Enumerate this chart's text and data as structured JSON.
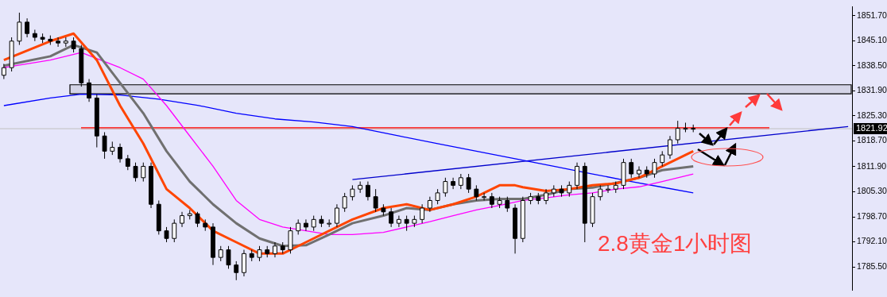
{
  "chart_data": {
    "type": "candlestick",
    "categories": [
      null,
      null,
      null,
      null,
      null,
      null,
      null,
      null,
      null,
      null,
      null,
      null,
      null,
      null,
      null,
      null,
      null,
      null,
      null,
      null,
      null,
      null,
      null,
      null,
      null,
      null,
      null,
      null,
      null,
      null,
      null,
      null,
      null,
      null,
      null,
      null,
      null,
      null,
      null,
      null,
      null,
      null,
      null,
      null,
      null,
      null,
      null,
      null,
      null,
      null,
      null,
      null,
      null,
      null,
      null,
      null,
      null,
      null,
      null,
      null,
      null,
      null,
      null,
      null,
      null,
      null,
      null,
      null,
      null,
      null,
      null,
      null,
      null,
      null,
      null,
      null,
      null,
      null,
      null,
      null,
      null,
      null,
      null,
      null,
      null,
      null,
      null,
      null,
      null,
      null,
      null,
      null,
      null,
      null,
      null,
      null,
      null,
      null,
      null,
      null,
      null,
      null,
      null,
      null,
      null,
      null,
      null,
      null,
      null,
      null
    ],
    "ohlc": [
      [
        1836,
        1839,
        1835,
        1838
      ],
      [
        1838,
        1846,
        1837,
        1845
      ],
      [
        1845,
        1852.5,
        1844,
        1850
      ],
      [
        1850,
        1851,
        1846,
        1847
      ],
      [
        1847,
        1848,
        1845,
        1846
      ],
      [
        1846,
        1847,
        1844.5,
        1845.5
      ],
      [
        1845.5,
        1846.5,
        1844,
        1845
      ],
      [
        1845,
        1846,
        1843.5,
        1844.5
      ],
      [
        1844.5,
        1846,
        1843.5,
        1845
      ],
      [
        1845,
        1846,
        1842,
        1843
      ],
      [
        1843,
        1844,
        1833,
        1834
      ],
      [
        1834,
        1835,
        1829,
        1830
      ],
      [
        1830,
        1831,
        1817,
        1820
      ],
      [
        1820,
        1821,
        1814,
        1816
      ],
      [
        1816,
        1818.5,
        1815,
        1817
      ],
      [
        1817,
        1818,
        1813,
        1814
      ],
      [
        1814,
        1815,
        1811,
        1812
      ],
      [
        1812,
        1813,
        1808,
        1809
      ],
      [
        1809,
        1813,
        1808,
        1812
      ],
      [
        1812,
        1813,
        1801,
        1802
      ],
      [
        1802,
        1803,
        1794,
        1795
      ],
      [
        1795,
        1796,
        1792,
        1793
      ],
      [
        1793,
        1798,
        1792,
        1797
      ],
      [
        1797,
        1800,
        1796,
        1799
      ],
      [
        1799,
        1800.5,
        1798,
        1799.5
      ],
      [
        1799.5,
        1800,
        1796,
        1797
      ],
      [
        1797,
        1798,
        1795,
        1796
      ],
      [
        1796,
        1797,
        1786,
        1788
      ],
      [
        1788,
        1791,
        1787,
        1790
      ],
      [
        1790,
        1791,
        1785,
        1786
      ],
      [
        1786,
        1787,
        1782,
        1784
      ],
      [
        1784,
        1790,
        1783,
        1789
      ],
      [
        1789,
        1790,
        1787,
        1788
      ],
      [
        1788,
        1791,
        1787,
        1790
      ],
      [
        1790,
        1791,
        1788,
        1789
      ],
      [
        1789,
        1792,
        1788,
        1791
      ],
      [
        1791,
        1792,
        1789,
        1790
      ],
      [
        1790,
        1796,
        1789,
        1795
      ],
      [
        1795,
        1798,
        1794,
        1797
      ],
      [
        1797,
        1798,
        1795,
        1796
      ],
      [
        1796,
        1799,
        1795,
        1798
      ],
      [
        1798,
        1799,
        1796,
        1797
      ],
      [
        1797,
        1798,
        1796,
        1797
      ],
      [
        1797,
        1802,
        1796,
        1801
      ],
      [
        1801,
        1805,
        1800,
        1804
      ],
      [
        1804,
        1807,
        1803,
        1806
      ],
      [
        1806,
        1808,
        1805,
        1807
      ],
      [
        1807,
        1808,
        1803,
        1804
      ],
      [
        1804,
        1806,
        1800,
        1801
      ],
      [
        1801,
        1802,
        1799,
        1800
      ],
      [
        1800,
        1801,
        1796,
        1797
      ],
      [
        1797,
        1799,
        1796,
        1798
      ],
      [
        1798,
        1799,
        1795,
        1797
      ],
      [
        1797,
        1799,
        1796,
        1798
      ],
      [
        1798,
        1802,
        1797,
        1801
      ],
      [
        1801,
        1804,
        1800,
        1803
      ],
      [
        1803,
        1806,
        1802,
        1805
      ],
      [
        1805,
        1809,
        1804,
        1808
      ],
      [
        1808,
        1809,
        1806,
        1807
      ],
      [
        1807,
        1810,
        1806,
        1809
      ],
      [
        1809,
        1810,
        1805,
        1806
      ],
      [
        1806,
        1807,
        1803,
        1804
      ],
      [
        1804,
        1805,
        1803,
        1804
      ],
      [
        1804,
        1805,
        1801,
        1802
      ],
      [
        1802,
        1804,
        1801,
        1803
      ],
      [
        1803,
        1804,
        1800,
        1801
      ],
      [
        1801,
        1802,
        1789,
        1793
      ],
      [
        1793,
        1804,
        1792,
        1803
      ],
      [
        1803,
        1805,
        1802,
        1804
      ],
      [
        1804,
        1805,
        1802,
        1803
      ],
      [
        1803,
        1806,
        1802,
        1805
      ],
      [
        1805,
        1807,
        1804,
        1806
      ],
      [
        1806,
        1807,
        1804,
        1805
      ],
      [
        1805,
        1808,
        1804,
        1807
      ],
      [
        1807,
        1813,
        1806,
        1812
      ],
      [
        1812,
        1813,
        1792,
        1797
      ],
      [
        1797,
        1805,
        1796,
        1804
      ],
      [
        1804,
        1807,
        1803,
        1806
      ],
      [
        1806,
        1807,
        1805,
        1806
      ],
      [
        1806,
        1808,
        1805,
        1807
      ],
      [
        1807,
        1814,
        1806,
        1813
      ],
      [
        1813,
        1814,
        1809,
        1810
      ],
      [
        1810,
        1812,
        1809,
        1811
      ],
      [
        1811,
        1812,
        1809,
        1810
      ],
      [
        1810,
        1814,
        1809,
        1813
      ],
      [
        1813,
        1816,
        1812,
        1815
      ],
      [
        1815,
        1820,
        1814,
        1819
      ],
      [
        1819,
        1824,
        1818,
        1822
      ],
      [
        1822,
        1823.5,
        1821,
        1822
      ],
      [
        1822,
        1823,
        1821,
        1821.9
      ],
      null,
      null,
      null,
      null,
      null,
      null,
      null,
      null,
      null,
      null,
      null,
      null,
      null,
      null,
      null,
      null,
      null,
      null,
      null,
      null
    ],
    "series": [
      {
        "type": "line",
        "color": "#ff4500",
        "values": [
          1840,
          null,
          null,
          null,
          null,
          null,
          1845,
          null,
          null,
          1847,
          null,
          null,
          1840,
          null,
          null,
          1828,
          null,
          null,
          1818,
          null,
          null,
          1806,
          null,
          null,
          1801,
          null,
          null,
          1795,
          null,
          null,
          1792,
          null,
          null,
          1789,
          null,
          null,
          1789,
          null,
          null,
          1792,
          null,
          null,
          1795,
          null,
          null,
          1798,
          null,
          null,
          null,
          1801,
          null,
          null,
          1802,
          null,
          null,
          1800.5,
          null,
          null,
          1802,
          null,
          null,
          1804,
          null,
          null,
          1807,
          null,
          1807,
          1806.5,
          null,
          null,
          1805.5,
          null,
          null,
          1806,
          null,
          null,
          1807,
          null,
          null,
          1807.5,
          null,
          null,
          1809,
          null,
          null,
          1812,
          null,
          null,
          null,
          1816,
          null,
          null,
          null,
          null,
          null,
          null,
          null,
          null,
          null,
          null,
          null,
          null,
          null,
          null,
          null,
          null,
          null,
          null,
          null,
          null
        ]
      },
      {
        "type": "line",
        "color": "#707070",
        "values": [
          1838.5,
          null,
          null,
          null,
          null,
          null,
          1841,
          null,
          null,
          1844,
          null,
          null,
          1842,
          null,
          null,
          1834,
          null,
          null,
          1826,
          null,
          null,
          1816,
          null,
          null,
          1808,
          null,
          null,
          1802,
          null,
          null,
          1797,
          null,
          null,
          1793,
          null,
          null,
          1791,
          null,
          null,
          1791.2,
          null,
          null,
          1794,
          null,
          null,
          1797,
          null,
          null,
          null,
          1799,
          null,
          null,
          1801,
          null,
          null,
          1800.5,
          null,
          null,
          1802,
          null,
          null,
          1803,
          null,
          null,
          1803.4,
          null,
          null,
          1803.4,
          null,
          null,
          1804.5,
          null,
          null,
          1806,
          null,
          null,
          1806.4,
          null,
          null,
          1807.6,
          null,
          null,
          1809,
          null,
          null,
          1811,
          null,
          null,
          null,
          1812,
          null,
          null,
          null,
          null,
          null,
          null,
          null,
          null,
          null,
          null,
          null,
          null,
          null,
          null,
          null,
          null,
          null,
          null,
          null,
          null
        ]
      },
      {
        "type": "line",
        "color": "#ff00ff",
        "values": [
          1838,
          null,
          null,
          null,
          null,
          null,
          1840,
          null,
          null,
          null,
          1842,
          null,
          null,
          null,
          null,
          1838,
          null,
          null,
          1835,
          null,
          null,
          1828,
          null,
          null,
          1820,
          null,
          null,
          1812,
          null,
          null,
          1803,
          null,
          null,
          1798,
          null,
          null,
          1796,
          null,
          null,
          1795,
          null,
          null,
          1794,
          null,
          null,
          1794,
          null,
          null,
          null,
          1794.6,
          null,
          null,
          1796,
          null,
          null,
          1797.4,
          null,
          null,
          1799,
          null,
          null,
          1800.5,
          null,
          null,
          1801.7,
          null,
          null,
          1803,
          null,
          null,
          1803.7,
          null,
          null,
          1804.5,
          null,
          null,
          1805,
          null,
          null,
          1806,
          null,
          null,
          1806.6,
          null,
          null,
          1808,
          null,
          null,
          null,
          1810,
          null,
          null,
          null,
          null,
          null,
          null,
          null,
          null,
          null,
          null,
          null,
          null,
          null,
          null,
          null,
          null,
          null,
          null,
          null,
          null
        ]
      },
      {
        "type": "line",
        "color": "#0000ff",
        "values": [
          1828,
          null,
          null,
          null,
          null,
          null,
          1830,
          null,
          null,
          null,
          1831,
          null,
          null,
          null,
          null,
          1830.8,
          null,
          null,
          null,
          null,
          1829.7,
          null,
          null,
          null,
          null,
          1828.1,
          null,
          null,
          null,
          null,
          1826,
          null,
          null,
          null,
          null,
          1824.5,
          null,
          null,
          null,
          null,
          1823.7,
          null,
          null,
          null,
          null,
          1822.5,
          null,
          null,
          null,
          null,
          null,
          1820,
          null,
          null,
          null,
          null,
          1818,
          null,
          null,
          null,
          null,
          1816,
          null,
          null,
          null,
          null,
          1814,
          null,
          null,
          null,
          null,
          1812,
          null,
          null,
          null,
          null,
          1810,
          null,
          null,
          null,
          null,
          1808,
          null,
          null,
          null,
          1806.5,
          null,
          null,
          null,
          1805,
          null,
          null,
          null,
          null,
          null,
          null,
          null,
          null,
          null,
          null,
          null,
          null,
          null,
          null,
          null,
          null,
          null,
          null,
          null,
          null
        ]
      },
      {
        "type": "line",
        "color": "#0000cc",
        "values": [
          null,
          null,
          null,
          null,
          null,
          null,
          null,
          null,
          null,
          null,
          null,
          null,
          null,
          null,
          null,
          null,
          null,
          null,
          null,
          null,
          null,
          null,
          null,
          null,
          null,
          null,
          null,
          null,
          null,
          null,
          null,
          null,
          null,
          null,
          null,
          null,
          null,
          null,
          null,
          null,
          null,
          null,
          null,
          null,
          null,
          1808.5,
          null,
          null,
          null,
          null,
          null,
          null,
          null,
          null,
          null,
          null,
          null,
          null,
          null,
          null,
          null,
          null,
          null,
          null,
          null,
          null,
          null,
          null,
          null,
          null,
          null,
          null,
          null,
          null,
          null,
          null,
          null,
          null,
          null,
          null,
          null,
          null,
          null,
          null,
          null,
          null,
          null,
          null,
          null,
          null,
          null,
          null,
          null,
          null,
          null,
          null,
          null,
          null,
          null,
          null,
          null,
          null,
          null,
          null,
          null,
          null,
          null,
          null,
          null,
          1822.5
        ]
      }
    ],
    "ylim": [
      1779.3,
      1854.1
    ],
    "yticks": [
      {
        "value": 1851.7,
        "label": "1851.70"
      },
      {
        "value": 1845.1,
        "label": "1845.10"
      },
      {
        "value": 1838.5,
        "label": "1838.50"
      },
      {
        "value": 1831.9,
        "label": "1831.90"
      },
      {
        "value": 1825.3,
        "label": "1825.30"
      },
      {
        "value": 1818.7,
        "label": "1818.70"
      },
      {
        "value": 1811.9,
        "label": "1811.90"
      },
      {
        "value": 1805.3,
        "label": "1805.30"
      },
      {
        "value": 1798.7,
        "label": "1798.70"
      },
      {
        "value": 1792.1,
        "label": "1792.10"
      },
      {
        "value": 1785.5,
        "label": "1785.50"
      }
    ],
    "tick_labels": "y",
    "ref_lines": [
      {
        "axis": "y",
        "value": 1822.1,
        "color": "#ff3333"
      },
      {
        "axis": "y",
        "value": 1821.92,
        "label": "1821.92",
        "color": "#c0c0c0"
      }
    ],
    "bands": [
      {
        "axis": "y",
        "from": 1831.1,
        "to": 1833.5,
        "color": "#000000"
      }
    ],
    "annotations": [
      "2.8黄金1小时图"
    ]
  }
}
